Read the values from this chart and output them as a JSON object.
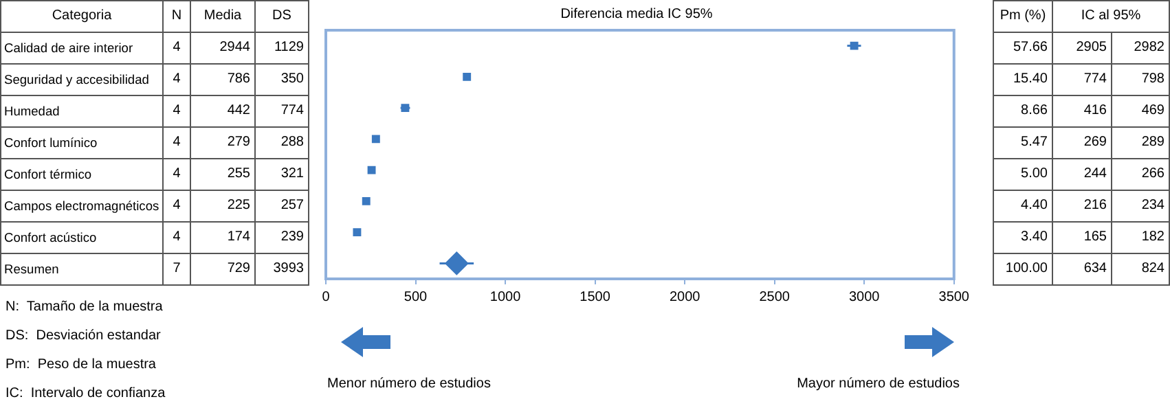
{
  "chart_data": [
    {
      "type": "other",
      "categories": [
        "N",
        "Media",
        "DS"
      ],
      "cell_labels": [
        [
          "4",
          "2944",
          "1129"
        ],
        [
          "4",
          "786",
          "350"
        ],
        [
          "4",
          "442",
          "774"
        ],
        [
          "4",
          "279",
          "288"
        ],
        [
          "4",
          "255",
          "321"
        ],
        [
          "4",
          "225",
          "257"
        ],
        [
          "4",
          "174",
          "239"
        ],
        [
          "7",
          "729",
          "3993"
        ]
      ],
      "annotations": [
        "N:  Tamaño de la muestra",
        "DS:  Desviación estandar",
        "Pm:  Peso de la muestra",
        "IC:  Intervalo de confianza"
      ]
    },
    {
      "type": "scatter",
      "title": "Diferencia media IC 95%",
      "ylabel": "Categoria",
      "orientation": "horizontal",
      "categories": [
        "Calidad de aire interior",
        "Seguridad y accesibilidad",
        "Humedad",
        "Confort lumínico",
        "Confort térmico",
        "Campos electromagnéticos",
        "Confort acústico",
        "Resumen"
      ],
      "xlim": [
        0,
        3500
      ],
      "xticks": [
        0,
        500,
        1000,
        1500,
        2000,
        2500,
        3000,
        3500
      ],
      "grid": false,
      "tick_labels": "x",
      "series": [
        {
          "color": "#3a78c0",
          "marker": "square",
          "values": [
            2944,
            786,
            442,
            279,
            255,
            225,
            174,
            null
          ],
          "errors": [
            [
              2905,
              2982
            ],
            [
              774,
              798
            ],
            [
              416,
              469
            ],
            [
              269,
              289
            ],
            [
              244,
              266
            ],
            [
              216,
              234
            ],
            [
              165,
              182
            ],
            null
          ]
        },
        {
          "color": "#3a78c0",
          "marker": "diamond",
          "values": [
            null,
            null,
            null,
            null,
            null,
            null,
            null,
            729
          ],
          "errors": [
            null,
            null,
            null,
            null,
            null,
            null,
            null,
            [
              634,
              824
            ]
          ]
        }
      ],
      "annotations": [
        "Menor número de estudios",
        "Mayor número de estudios"
      ]
    },
    {
      "type": "other",
      "categories": [
        "Pm (%)",
        "IC al 95%",
        null
      ],
      "cell_labels": [
        [
          "57.66",
          "2905",
          "2982"
        ],
        [
          "15.40",
          "774",
          "798"
        ],
        [
          "8.66",
          "416",
          "469"
        ],
        [
          "5.47",
          "269",
          "289"
        ],
        [
          "5.00",
          "244",
          "266"
        ],
        [
          "4.40",
          "216",
          "234"
        ],
        [
          "3.40",
          "165",
          "182"
        ],
        [
          "100.00",
          "634",
          "824"
        ]
      ]
    }
  ]
}
